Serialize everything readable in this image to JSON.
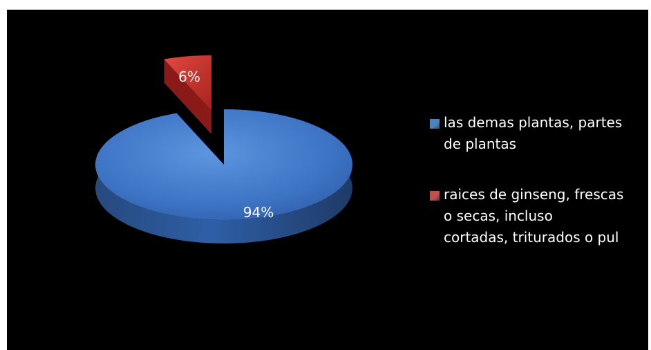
{
  "chart_data": {
    "type": "pie",
    "title": "",
    "categories": [
      "las demas plantas, partes de plantas",
      "raices de ginseng, frescas o secas, incluso cortadas, triturados o pul"
    ],
    "values": [
      94,
      6
    ],
    "data_labels": [
      "94%",
      "6%"
    ],
    "colors": [
      "#3f7bd1",
      "#c0312d"
    ],
    "legend_position": "right",
    "style": "3d-exploded"
  },
  "legend": {
    "items": [
      {
        "label": "las demas plantas, partes\nde plantas",
        "color": "#4f81bd"
      },
      {
        "label": "raices de ginseng, frescas\no secas, incluso\ncortadas, triturados o pul",
        "color": "#c0504d"
      }
    ]
  }
}
